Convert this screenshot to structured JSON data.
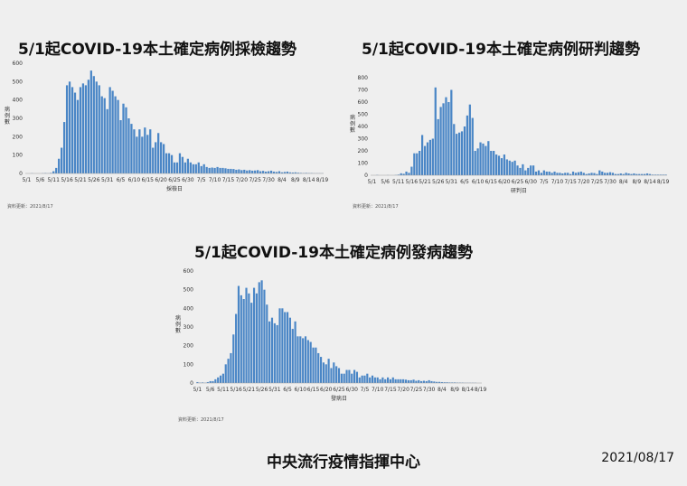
{
  "footer": {
    "org": "中央流行疫情指揮中心",
    "date": "2021/08/17"
  },
  "chart_data": [
    {
      "id": "c1",
      "type": "bar",
      "title": "5/1起COVID-19本土確定病例採檢趨勢",
      "xlabel": "採檢日",
      "ylabel": "病例數",
      "ylim": [
        0,
        600
      ],
      "yticks": [
        0,
        100,
        200,
        300,
        400,
        500,
        600
      ],
      "source_note": "資料更新：2021/8/17",
      "tick_labels": [
        "5/1",
        "5/6",
        "5/11",
        "5/16",
        "5/21",
        "5/26",
        "5/31",
        "6/5",
        "6/10",
        "6/15",
        "6/20",
        "6/25",
        "6/30",
        "7/5",
        "7/10",
        "7/15",
        "7/20",
        "7/25",
        "7/30",
        "8/4",
        "8/9",
        "8/14",
        "8/19"
      ],
      "color": "#4a86c6",
      "values": [
        0,
        0,
        1,
        0,
        0,
        0,
        1,
        2,
        1,
        3,
        12,
        30,
        80,
        140,
        280,
        480,
        500,
        470,
        440,
        400,
        470,
        490,
        480,
        510,
        560,
        530,
        500,
        480,
        420,
        410,
        350,
        470,
        450,
        420,
        400,
        290,
        380,
        360,
        300,
        270,
        240,
        200,
        240,
        200,
        250,
        210,
        240,
        140,
        170,
        220,
        170,
        160,
        110,
        110,
        100,
        60,
        60,
        110,
        90,
        60,
        80,
        60,
        50,
        50,
        60,
        40,
        50,
        35,
        30,
        32,
        30,
        35,
        30,
        30,
        28,
        25,
        25,
        24,
        20,
        22,
        18,
        20,
        16,
        18,
        15,
        16,
        18,
        12,
        14,
        10,
        12,
        15,
        10,
        8,
        12,
        6,
        8,
        10,
        6,
        5,
        6,
        4,
        3,
        2,
        3,
        2,
        2,
        1,
        1,
        1,
        1
      ]
    },
    {
      "id": "c2",
      "type": "bar",
      "title": "5/1起COVID-19本土確定病例研判趨勢",
      "xlabel": "研判日",
      "ylabel": "病例數",
      "ylim": [
        0,
        800
      ],
      "yticks": [
        0,
        100,
        200,
        300,
        400,
        500,
        600,
        700,
        800
      ],
      "source_note": "資料更新：2021/8/17",
      "tick_labels": [
        "5/1",
        "5/6",
        "5/11",
        "5/16",
        "5/21",
        "5/26",
        "5/31",
        "6/5",
        "6/10",
        "6/15",
        "6/20",
        "6/25",
        "6/30",
        "7/5",
        "7/10",
        "7/15",
        "7/20",
        "7/25",
        "7/30",
        "8/4",
        "8/9",
        "8/14",
        "8/19"
      ],
      "color": "#4a86c6",
      "values": [
        0,
        0,
        2,
        0,
        0,
        0,
        1,
        0,
        0,
        2,
        5,
        16,
        12,
        30,
        20,
        70,
        180,
        180,
        200,
        330,
        240,
        270,
        290,
        300,
        720,
        460,
        560,
        590,
        640,
        600,
        700,
        420,
        340,
        350,
        360,
        400,
        490,
        580,
        470,
        200,
        220,
        270,
        260,
        240,
        280,
        200,
        200,
        170,
        160,
        140,
        170,
        130,
        120,
        110,
        120,
        80,
        60,
        90,
        40,
        60,
        80,
        80,
        30,
        40,
        20,
        40,
        30,
        30,
        20,
        30,
        20,
        20,
        15,
        20,
        20,
        10,
        30,
        20,
        25,
        30,
        20,
        10,
        15,
        20,
        18,
        10,
        40,
        30,
        20,
        20,
        25,
        20,
        10,
        10,
        15,
        10,
        20,
        15,
        10,
        15,
        10,
        10,
        10,
        10,
        15,
        10,
        5,
        5,
        5,
        5,
        5,
        5
      ]
    },
    {
      "id": "c3",
      "type": "bar",
      "title": "5/1起COVID-19本土確定病例發病趨勢",
      "xlabel": "發病日",
      "ylabel": "病例數",
      "ylim": [
        0,
        600
      ],
      "yticks": [
        0,
        100,
        200,
        300,
        400,
        500,
        600
      ],
      "source_note": "資料更新：2021/8/17",
      "tick_labels": [
        "5/1",
        "5/6",
        "5/11",
        "5/16",
        "5/21",
        "5/26",
        "5/31",
        "6/5",
        "6/10",
        "6/15",
        "6/20",
        "6/25",
        "6/30",
        "7/5",
        "7/10",
        "7/15",
        "7/20",
        "7/25",
        "7/30",
        "8/4",
        "8/9",
        "8/14",
        "8/19"
      ],
      "color": "#4a86c6",
      "values": [
        5,
        2,
        3,
        1,
        5,
        10,
        10,
        20,
        30,
        40,
        50,
        100,
        130,
        160,
        260,
        370,
        520,
        470,
        450,
        510,
        480,
        430,
        510,
        480,
        540,
        550,
        500,
        420,
        330,
        350,
        320,
        310,
        400,
        400,
        380,
        380,
        350,
        290,
        330,
        250,
        250,
        240,
        250,
        230,
        220,
        190,
        190,
        160,
        140,
        110,
        100,
        130,
        80,
        110,
        90,
        80,
        50,
        50,
        70,
        70,
        50,
        70,
        60,
        30,
        40,
        40,
        50,
        30,
        40,
        30,
        30,
        20,
        30,
        20,
        30,
        20,
        30,
        20,
        20,
        20,
        20,
        18,
        15,
        15,
        18,
        12,
        15,
        10,
        12,
        10,
        15,
        10,
        8,
        6,
        6,
        5,
        4,
        4,
        3,
        3,
        3,
        2,
        2,
        2,
        1,
        1,
        1,
        1,
        1,
        0,
        0
      ]
    }
  ]
}
